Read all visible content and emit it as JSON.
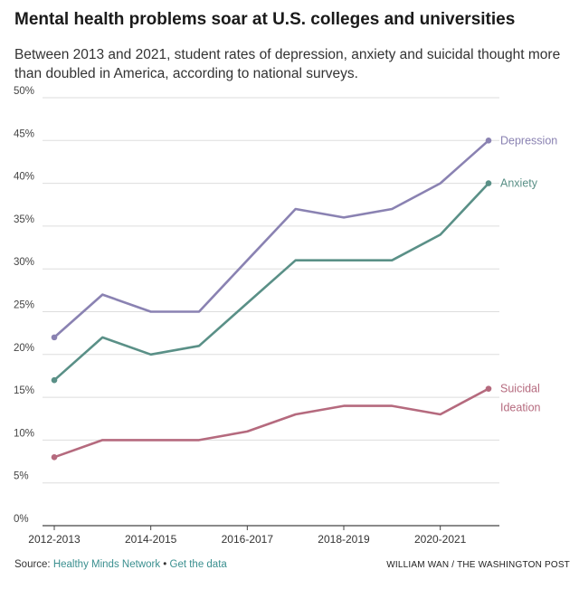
{
  "header": {
    "title": "Mental health problems soar at U.S. colleges and universities",
    "subtitle": "Between 2013 and 2021, student rates of depression, anxiety and suicidal thought more than doubled in America, according to national surveys."
  },
  "footer": {
    "source_label": "Source: ",
    "source_link": "Healthy Minds Network",
    "bullet": "•",
    "data_link": "Get the data",
    "credit": "WILLIAM WAN / THE WASHINGTON POST"
  },
  "colors": {
    "depression": "#8a82b2",
    "anxiety": "#5a9087",
    "suicidal": "#b56a7e",
    "grid": "#dddddd",
    "axis": "#444444"
  },
  "chart_data": {
    "type": "line",
    "x": [
      2013,
      2014,
      2015,
      2016,
      2017,
      2018,
      2019,
      2020,
      2021,
      2022
    ],
    "xticks": [
      {
        "x": 2013,
        "label": "2012-2013"
      },
      {
        "x": 2015,
        "label": "2014-2015"
      },
      {
        "x": 2017,
        "label": "2016-2017"
      },
      {
        "x": 2019,
        "label": "2018-2019"
      },
      {
        "x": 2021,
        "label": "2020-2021"
      }
    ],
    "yticks": [
      0,
      5,
      10,
      15,
      20,
      25,
      30,
      35,
      40,
      45,
      50
    ],
    "ytick_labels": [
      "0%",
      "5%",
      "10%",
      "15%",
      "20%",
      "25%",
      "30%",
      "35%",
      "40%",
      "45%",
      "50%"
    ],
    "ylim": [
      0,
      50
    ],
    "xlim": [
      2013,
      2022
    ],
    "grid": true,
    "series": [
      {
        "name": "Depression",
        "key": "depression",
        "values": [
          22,
          27,
          25,
          25,
          31,
          37,
          36,
          37,
          40,
          45
        ]
      },
      {
        "name": "Anxiety",
        "key": "anxiety",
        "values": [
          17,
          22,
          20,
          21,
          26,
          31,
          31,
          31,
          34,
          40
        ]
      },
      {
        "name": "Suicidal Ideation",
        "label_lines": [
          "Suicidal",
          "Ideation"
        ],
        "key": "suicidal",
        "values": [
          8,
          10,
          10,
          10,
          11,
          13,
          14,
          14,
          13,
          16
        ]
      }
    ]
  }
}
